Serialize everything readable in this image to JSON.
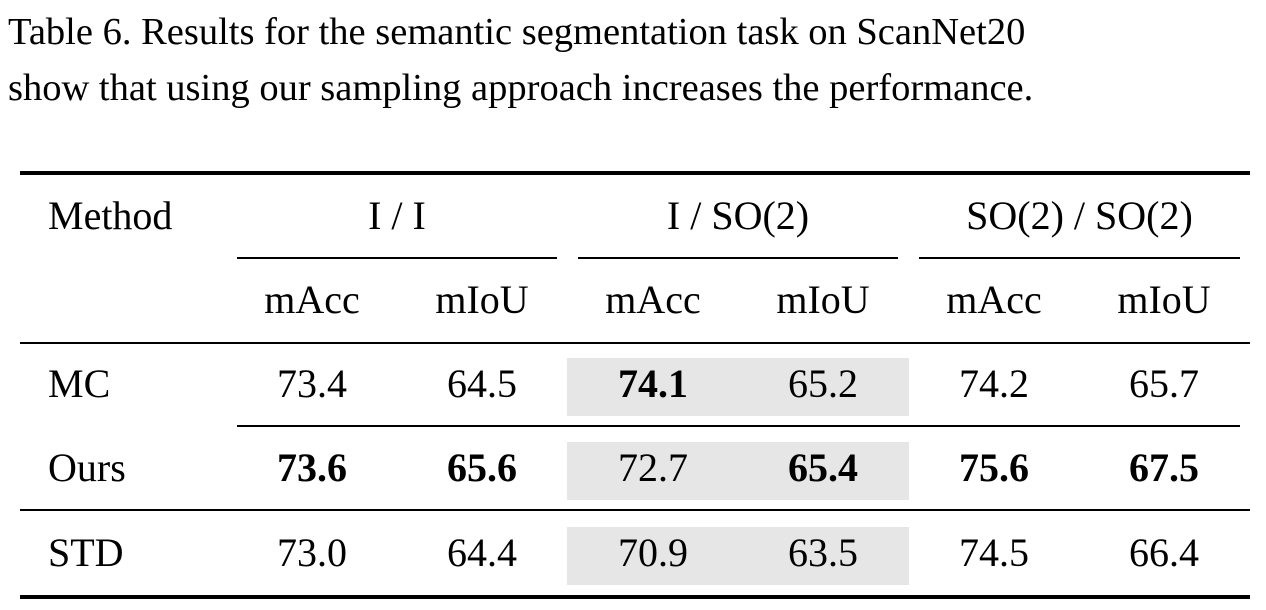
{
  "caption": {
    "line1": "Table 6. Results for the semantic segmentation task on ScanNet20",
    "line2": "show that using our sampling approach increases the performance."
  },
  "table": {
    "method_header": "Method",
    "groups": [
      "I / I",
      "I / SO(2)",
      "SO(2) / SO(2)"
    ],
    "metrics": [
      "mAcc",
      "mIoU",
      "mAcc",
      "mIoU",
      "mAcc",
      "mIoU"
    ],
    "rows": [
      {
        "method": "MC",
        "values": [
          "73.4",
          "64.5",
          "74.1",
          "65.2",
          "74.2",
          "65.7"
        ],
        "bold": [
          false,
          false,
          true,
          false,
          false,
          false
        ]
      },
      {
        "method": "Ours",
        "values": [
          "73.6",
          "65.6",
          "72.7",
          "65.4",
          "75.6",
          "67.5"
        ],
        "bold": [
          true,
          true,
          false,
          true,
          true,
          true
        ]
      },
      {
        "method": "STD",
        "values": [
          "73.0",
          "64.4",
          "70.9",
          "63.5",
          "74.5",
          "66.4"
        ],
        "bold": [
          false,
          false,
          false,
          false,
          false,
          false
        ]
      }
    ],
    "highlight_group": "I / SO(2)",
    "highlight_color": "#e6e6e6"
  }
}
